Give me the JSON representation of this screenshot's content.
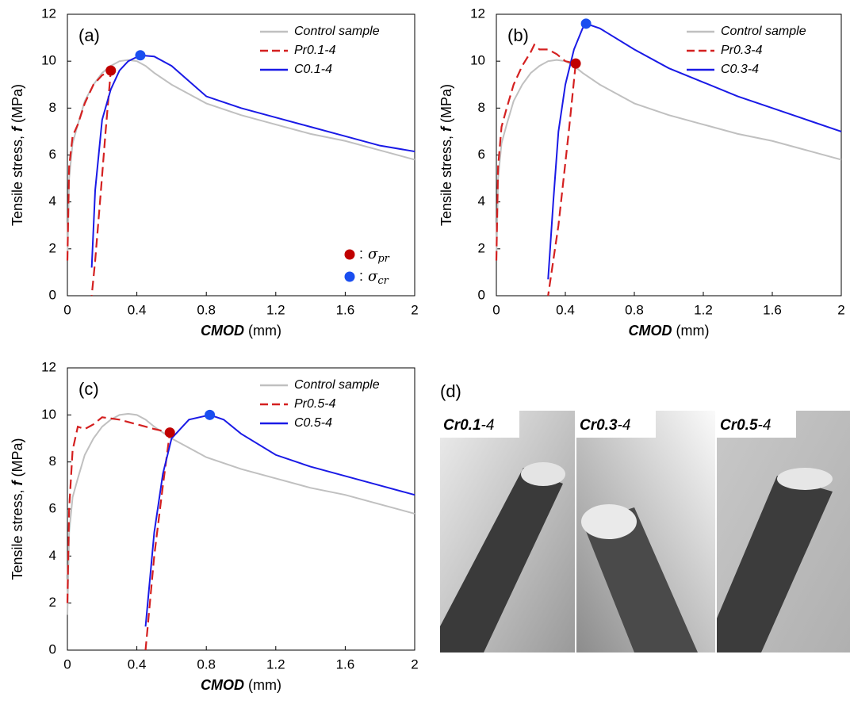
{
  "chart_data": [
    {
      "type": "line",
      "title": "(a)",
      "xlabel": [
        "CMOD",
        "(mm)"
      ],
      "ylabel": [
        "Tensile stress,",
        "f",
        "(MPa)"
      ],
      "xlim": [
        0,
        2
      ],
      "xticks": [
        0,
        0.4,
        0.8,
        1.2,
        1.6,
        2
      ],
      "ylim": [
        0,
        12
      ],
      "yticks": [
        0,
        2,
        4,
        6,
        8,
        10,
        12
      ],
      "legend": "upper right",
      "series": [
        {
          "name": "Control sample",
          "color": "#c0c0c0",
          "linestyle": "solid",
          "x": [
            0,
            0.01,
            0.03,
            0.06,
            0.1,
            0.15,
            0.2,
            0.25,
            0.3,
            0.35,
            0.4,
            0.45,
            0.5,
            0.6,
            0.8,
            1.0,
            1.2,
            1.4,
            1.6,
            1.8,
            2.0
          ],
          "values": [
            1.5,
            5.0,
            6.5,
            7.3,
            8.3,
            9.0,
            9.5,
            9.8,
            10.0,
            10.05,
            10.0,
            9.8,
            9.5,
            9.0,
            8.2,
            7.7,
            7.3,
            6.9,
            6.6,
            6.2,
            5.8
          ]
        },
        {
          "name": "Pr0.1-4",
          "color": "#d42020",
          "linestyle": "dashed",
          "x": [
            0,
            0.01,
            0.03,
            0.06,
            0.1,
            0.15,
            0.2,
            0.25,
            0.22,
            0.19,
            0.16,
            0.14
          ],
          "values": [
            1.5,
            5.5,
            6.8,
            7.3,
            8.2,
            9.0,
            9.4,
            9.6,
            7.0,
            4.2,
            1.5,
            0
          ]
        },
        {
          "name": "C0.1-4",
          "color": "#1a1ae6",
          "linestyle": "solid",
          "x": [
            0.14,
            0.16,
            0.2,
            0.25,
            0.3,
            0.35,
            0.42,
            0.5,
            0.6,
            0.8,
            1.0,
            1.2,
            1.4,
            1.6,
            1.8,
            2.0
          ],
          "values": [
            1.2,
            4.5,
            7.5,
            8.8,
            9.6,
            10.0,
            10.25,
            10.2,
            9.8,
            8.5,
            8.0,
            7.6,
            7.2,
            6.8,
            6.4,
            6.15
          ]
        }
      ],
      "points": [
        {
          "x": 0.25,
          "y": 9.6,
          "color": "#c00000"
        },
        {
          "x": 0.42,
          "y": 10.25,
          "color": "#1a4ef0"
        }
      ],
      "point_legend": [
        {
          "label": ":",
          "symbol": "σ",
          "subscript": "pr",
          "color": "#c00000"
        },
        {
          "label": ":",
          "symbol": "σ",
          "subscript": "cr",
          "color": "#1a4ef0"
        }
      ]
    },
    {
      "type": "line",
      "title": "(b)",
      "xlabel": [
        "CMOD",
        "(mm)"
      ],
      "ylabel": [
        "Tensile stress,",
        "f",
        "(MPa)"
      ],
      "xlim": [
        0,
        2
      ],
      "xticks": [
        0,
        0.4,
        0.8,
        1.2,
        1.6,
        2
      ],
      "ylim": [
        0,
        12
      ],
      "yticks": [
        0,
        2,
        4,
        6,
        8,
        10,
        12
      ],
      "legend": "upper right",
      "series": [
        {
          "name": "Control sample",
          "color": "#c0c0c0",
          "linestyle": "solid",
          "x": [
            0,
            0.01,
            0.03,
            0.06,
            0.1,
            0.15,
            0.2,
            0.25,
            0.3,
            0.35,
            0.4,
            0.45,
            0.5,
            0.6,
            0.8,
            1.0,
            1.2,
            1.4,
            1.6,
            1.8,
            2.0
          ],
          "values": [
            1.5,
            5.0,
            6.5,
            7.3,
            8.3,
            9.0,
            9.5,
            9.8,
            10.0,
            10.05,
            10.0,
            9.8,
            9.5,
            9.0,
            8.2,
            7.7,
            7.3,
            6.9,
            6.6,
            6.2,
            5.8
          ]
        },
        {
          "name": "Pr0.3-4",
          "color": "#d42020",
          "linestyle": "dashed",
          "x": [
            0,
            0.01,
            0.03,
            0.06,
            0.1,
            0.15,
            0.2,
            0.22,
            0.25,
            0.3,
            0.35,
            0.4,
            0.46,
            0.42,
            0.36,
            0.3
          ],
          "values": [
            1.5,
            5.5,
            7.2,
            8.0,
            9.0,
            9.8,
            10.4,
            10.7,
            10.5,
            10.5,
            10.3,
            10.0,
            9.9,
            7.0,
            3.0,
            0
          ]
        },
        {
          "name": "C0.3-4",
          "color": "#1a1ae6",
          "linestyle": "solid",
          "x": [
            0.3,
            0.33,
            0.36,
            0.4,
            0.45,
            0.5,
            0.52,
            0.6,
            0.8,
            1.0,
            1.2,
            1.4,
            1.6,
            1.8,
            2.0
          ],
          "values": [
            0.7,
            4.0,
            7.0,
            9.0,
            10.5,
            11.4,
            11.6,
            11.4,
            10.5,
            9.7,
            9.1,
            8.5,
            8.0,
            7.5,
            7.0
          ]
        }
      ],
      "points": [
        {
          "x": 0.46,
          "y": 9.9,
          "color": "#c00000"
        },
        {
          "x": 0.52,
          "y": 11.6,
          "color": "#1a4ef0"
        }
      ]
    },
    {
      "type": "line",
      "title": "(c)",
      "xlabel": [
        "CMOD",
        "(mm)"
      ],
      "ylabel": [
        "Tensile stress,",
        "f",
        "(MPa)"
      ],
      "xlim": [
        0,
        2
      ],
      "xticks": [
        0,
        0.4,
        0.8,
        1.2,
        1.6,
        2
      ],
      "ylim": [
        0,
        12
      ],
      "yticks": [
        0,
        2,
        4,
        6,
        8,
        10,
        12
      ],
      "legend": "upper right",
      "series": [
        {
          "name": "Control sample",
          "color": "#c0c0c0",
          "linestyle": "solid",
          "x": [
            0,
            0.01,
            0.03,
            0.06,
            0.1,
            0.15,
            0.2,
            0.25,
            0.3,
            0.35,
            0.4,
            0.45,
            0.5,
            0.6,
            0.8,
            1.0,
            1.2,
            1.4,
            1.6,
            1.8,
            2.0
          ],
          "values": [
            1.5,
            5.0,
            6.5,
            7.3,
            8.3,
            9.0,
            9.5,
            9.8,
            10.0,
            10.05,
            10.0,
            9.8,
            9.5,
            9.0,
            8.2,
            7.7,
            7.3,
            6.9,
            6.6,
            6.2,
            5.8
          ]
        },
        {
          "name": "Pr0.5-4",
          "color": "#d42020",
          "linestyle": "dashed",
          "x": [
            0,
            0.01,
            0.03,
            0.06,
            0.1,
            0.15,
            0.2,
            0.3,
            0.4,
            0.5,
            0.59,
            0.55,
            0.5,
            0.45
          ],
          "values": [
            2.0,
            6.0,
            8.5,
            9.5,
            9.4,
            9.6,
            9.9,
            9.8,
            9.6,
            9.4,
            9.25,
            7.0,
            4.0,
            0
          ]
        },
        {
          "name": "C0.5-4",
          "color": "#1a1ae6",
          "linestyle": "solid",
          "x": [
            0.45,
            0.5,
            0.55,
            0.6,
            0.7,
            0.82,
            0.9,
            1.0,
            1.2,
            1.4,
            1.6,
            1.8,
            2.0
          ],
          "values": [
            1.0,
            5.0,
            7.5,
            9.0,
            9.8,
            10.0,
            9.8,
            9.2,
            8.3,
            7.8,
            7.4,
            7.0,
            6.6
          ]
        }
      ],
      "points": [
        {
          "x": 0.59,
          "y": 9.25,
          "color": "#c00000"
        },
        {
          "x": 0.82,
          "y": 10.0,
          "color": "#1a4ef0"
        }
      ]
    }
  ],
  "photos": {
    "title": "(d)",
    "captions": [
      [
        "Cr0.1",
        "-4"
      ],
      [
        "Cr0.3",
        "-4"
      ],
      [
        "Cr0.5",
        "-4"
      ]
    ]
  }
}
